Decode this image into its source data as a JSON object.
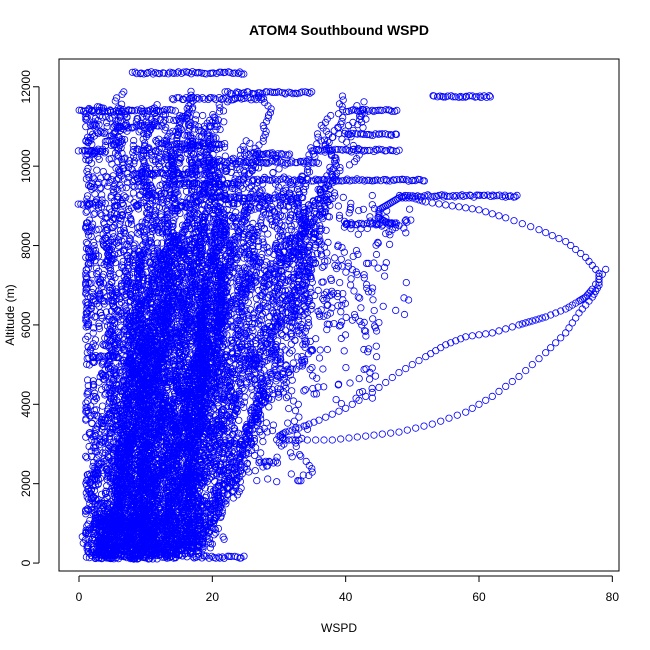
{
  "chart_data": {
    "type": "scatter",
    "title": "ATOM4 Southbound WSPD",
    "xlabel": "WSPD",
    "ylabel": "Altitude (m)",
    "xlim": [
      -3,
      81
    ],
    "ylim": [
      -200,
      12700
    ],
    "xticks": [
      0,
      20,
      40,
      60,
      80
    ],
    "yticks": [
      0,
      2000,
      4000,
      6000,
      8000,
      10000,
      12000
    ],
    "grid": false,
    "legend": "none",
    "point_color": "#0000ff",
    "marker": "open-circle",
    "series": [
      {
        "name": "",
        "x": [
          79,
          77,
          76,
          75,
          73,
          70,
          68,
          66,
          62,
          58,
          55,
          52,
          48,
          44,
          40,
          36,
          33,
          31,
          30,
          31,
          33,
          38,
          43,
          48,
          53,
          58,
          62,
          66,
          70,
          73,
          75,
          77,
          78,
          78,
          76,
          73,
          69,
          64,
          60,
          56,
          52,
          50,
          48,
          47,
          46,
          45,
          45,
          46,
          48,
          46
        ],
        "y": [
          7400,
          6900,
          6700,
          6600,
          6400,
          6200,
          6100,
          6000,
          5800,
          5700,
          5500,
          5200,
          4800,
          4300,
          3900,
          3600,
          3400,
          3300,
          3200,
          3100,
          3100,
          3100,
          3200,
          3300,
          3500,
          3800,
          4200,
          4700,
          5300,
          5800,
          6300,
          6700,
          7000,
          7300,
          7700,
          8100,
          8400,
          8700,
          8900,
          9000,
          9100,
          9200,
          9200,
          9100,
          9000,
          8900,
          8700,
          8600,
          8500,
          8300
        ]
      }
    ],
    "dense_regions": [
      {
        "x": [
          1,
          22
        ],
        "y": [
          100,
          11500
        ],
        "weight": 0.55
      },
      {
        "x": [
          3,
          16
        ],
        "y": [
          100,
          1200
        ],
        "weight": 0.12
      },
      {
        "x": [
          10,
          35
        ],
        "y": [
          2000,
          10500
        ],
        "weight": 0.18
      },
      {
        "x": [
          20,
          45
        ],
        "y": [
          4000,
          9500
        ],
        "weight": 0.1
      },
      {
        "x": [
          30,
          50
        ],
        "y": [
          6000,
          9200
        ],
        "weight": 0.05
      }
    ],
    "bands": [
      {
        "y": 12350,
        "x": [
          8,
          25
        ]
      },
      {
        "y": 11850,
        "x": [
          22,
          35
        ]
      },
      {
        "y": 11750,
        "x": [
          53,
          62
        ]
      },
      {
        "y": 11700,
        "x": [
          14,
          28
        ]
      },
      {
        "y": 11400,
        "x": [
          0,
          14
        ]
      },
      {
        "y": 11400,
        "x": [
          40,
          48
        ]
      },
      {
        "y": 11000,
        "x": [
          5,
          12
        ]
      },
      {
        "y": 10800,
        "x": [
          40,
          48
        ]
      },
      {
        "y": 10550,
        "x": [
          12,
          22
        ]
      },
      {
        "y": 10400,
        "x": [
          0,
          4
        ]
      },
      {
        "y": 10400,
        "x": [
          35,
          48
        ]
      },
      {
        "y": 10300,
        "x": [
          25,
          32
        ]
      },
      {
        "y": 10100,
        "x": [
          18,
          36
        ]
      },
      {
        "y": 9800,
        "x": [
          8,
          20
        ]
      },
      {
        "y": 9650,
        "x": [
          26,
          52
        ]
      },
      {
        "y": 9550,
        "x": [
          14,
          24
        ]
      },
      {
        "y": 9250,
        "x": [
          48,
          66
        ]
      },
      {
        "y": 9200,
        "x": [
          20,
          34
        ]
      },
      {
        "y": 9050,
        "x": [
          0,
          4
        ]
      },
      {
        "y": 8550,
        "x": [
          40,
          48
        ]
      },
      {
        "y": 5150,
        "x": [
          23,
          27
        ]
      },
      {
        "y": 5200,
        "x": [
          2,
          6
        ]
      },
      {
        "y": 3000,
        "x": [
          22,
          25
        ]
      },
      {
        "y": 2550,
        "x": [
          27,
          30
        ]
      },
      {
        "y": 2150,
        "x": [
          15,
          20
        ]
      },
      {
        "y": 150,
        "x": [
          17,
          25
        ]
      },
      {
        "y": 200,
        "x": [
          3,
          14
        ]
      }
    ]
  }
}
